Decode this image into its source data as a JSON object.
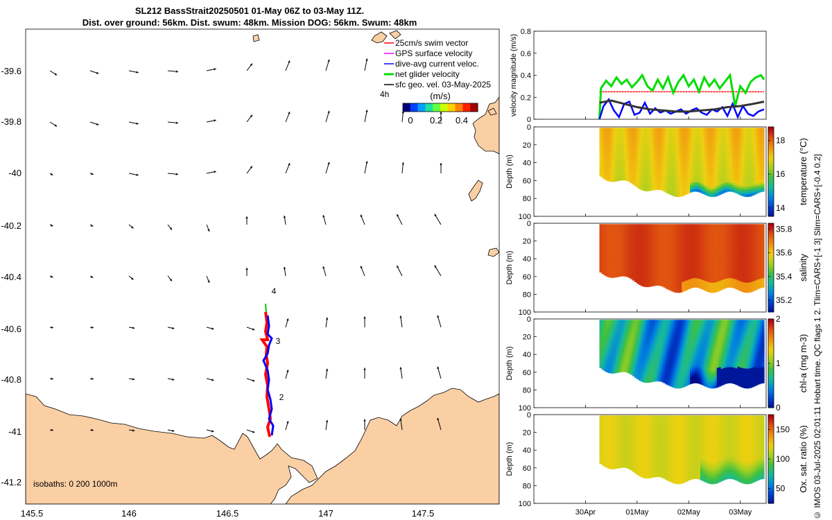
{
  "title": {
    "line1": "SL212 BassStrait20250501 01-May 06Z to 03-May 11Z.",
    "line2": "Dist. over ground: 56km. Dist. swum: 48km. Mission DOG: 56km. Swum: 48km"
  },
  "side_caption": "© IMOS 03-Jul-2025 02:01:11 Hobart time. QC flags 1  2. Tlim=CARS+[-1 3] Slim=CARS+[-0.4 0.2]",
  "colors": {
    "land": "#fbcfa4",
    "swim": "#ff0000",
    "gps": "#ff00ff",
    "dac": "#0000ff",
    "net": "#00dd00",
    "geo": "#000000",
    "track_red": "#ff0000",
    "track_blue": "#0000ff",
    "track_green": "#00cc00"
  },
  "map": {
    "xticks": [
      "145.5",
      "146",
      "146.5",
      "147",
      "147.5"
    ],
    "yticks": [
      "-39.6",
      "-39.8",
      "-40",
      "-40.2",
      "-40.4",
      "-40.6",
      "-40.8",
      "-41",
      "-41.2"
    ],
    "legend": [
      "25cm/s swim vector",
      "GPS surface velocity",
      "dive-avg current veloc.",
      "net glider velocity",
      "sfc geo. vel. 03-May-2025"
    ],
    "legend_4h": "4h",
    "colorbar_label": "(m/s)",
    "colorbar_ticks": [
      "0",
      "0.2",
      "0.4"
    ],
    "isobaths_label": "isobaths: 0   200  1000m",
    "day_markers": [
      "4",
      "3",
      "2"
    ]
  },
  "chart_data": [
    {
      "type": "line",
      "title": "",
      "ylabel": "velocity magnitude (m/s)",
      "ylim": [
        0,
        0.8
      ],
      "yticks": [
        "0",
        "0.2",
        "0.4",
        "0.6",
        "0.8"
      ],
      "x_ticks": [
        "30Apr",
        "01May",
        "02May",
        "03May"
      ],
      "x_domain_days": [
        29.0,
        33.5
      ],
      "series": [
        {
          "name": "25cm/s swim vector",
          "color": "#ff0000",
          "x": [
            30.27,
            30.5,
            30.75,
            31.0,
            31.25,
            31.5,
            31.75,
            32.0,
            32.25,
            32.5,
            32.75,
            33.0,
            33.25,
            33.46
          ],
          "values": [
            0.25,
            0.25,
            0.25,
            0.25,
            0.25,
            0.25,
            0.25,
            0.25,
            0.25,
            0.25,
            0.25,
            0.25,
            0.25,
            0.25
          ]
        },
        {
          "name": "net glider velocity",
          "color": "#00dd00",
          "x": [
            30.27,
            30.3,
            30.4,
            30.5,
            30.6,
            30.7,
            30.8,
            30.9,
            31.0,
            31.1,
            31.2,
            31.3,
            31.4,
            31.5,
            31.6,
            31.7,
            31.8,
            31.9,
            32.0,
            32.1,
            32.2,
            32.3,
            32.4,
            32.5,
            32.6,
            32.7,
            32.8,
            32.9,
            33.0,
            33.1,
            33.2,
            33.3,
            33.4,
            33.46
          ],
          "values": [
            0.0,
            0.28,
            0.35,
            0.3,
            0.38,
            0.32,
            0.36,
            0.29,
            0.34,
            0.4,
            0.3,
            0.26,
            0.36,
            0.28,
            0.38,
            0.24,
            0.34,
            0.4,
            0.3,
            0.36,
            0.25,
            0.38,
            0.3,
            0.36,
            0.28,
            0.34,
            0.4,
            0.12,
            0.3,
            0.24,
            0.34,
            0.38,
            0.4,
            0.36
          ]
        },
        {
          "name": "dive-avg current veloc.",
          "color": "#0000ff",
          "x": [
            30.27,
            30.35,
            30.45,
            30.55,
            30.65,
            30.75,
            30.85,
            30.95,
            31.05,
            31.15,
            31.25,
            31.35,
            31.45,
            31.55,
            31.65,
            31.75,
            31.85,
            31.95,
            32.05,
            32.15,
            32.25,
            32.35,
            32.45,
            32.55,
            32.65,
            32.75,
            32.85,
            32.95,
            33.05,
            33.15,
            33.25,
            33.35,
            33.46
          ],
          "values": [
            0.0,
            0.12,
            0.18,
            0.08,
            0.02,
            0.14,
            0.16,
            0.04,
            0.06,
            0.15,
            0.05,
            0.1,
            0.06,
            0.08,
            0.05,
            0.07,
            0.09,
            0.05,
            0.08,
            0.1,
            0.06,
            0.04,
            0.09,
            0.07,
            0.11,
            0.03,
            0.14,
            0.02,
            0.12,
            0.05,
            0.03,
            0.07,
            0.09
          ]
        },
        {
          "name": "sfc geo. vel. 03-May-2025",
          "color": "#333333",
          "x": [
            30.27,
            30.5,
            30.75,
            31.0,
            31.25,
            31.5,
            31.75,
            32.0,
            32.25,
            32.5,
            32.75,
            33.0,
            33.25,
            33.46
          ],
          "values": [
            0.15,
            0.17,
            0.14,
            0.11,
            0.09,
            0.08,
            0.07,
            0.07,
            0.08,
            0.09,
            0.11,
            0.12,
            0.14,
            0.16
          ]
        }
      ]
    },
    {
      "type": "heatmap",
      "ylabel": "Depth (m)",
      "colorbar_label": "temperature (°C)",
      "colorbar_ticks": [
        "14",
        "16",
        "18"
      ],
      "clim": [
        13.5,
        18.8
      ],
      "ylim": [
        0,
        100
      ],
      "yticks": [
        "0",
        "20",
        "40",
        "60",
        "80",
        "100"
      ],
      "dominant_value": 17.3,
      "colormap": [
        "#000c8a",
        "#003fd0",
        "#0084e0",
        "#16b8a0",
        "#40c040",
        "#a8d020",
        "#f0d010",
        "#f09010",
        "#e05010",
        "#b00010"
      ]
    },
    {
      "type": "heatmap",
      "ylabel": "Depth (m)",
      "colorbar_label": "salinity",
      "colorbar_ticks": [
        "35.2",
        "35.4",
        "35.6",
        "35.8"
      ],
      "clim": [
        35.1,
        35.85
      ],
      "ylim": [
        0,
        100
      ],
      "yticks": [
        "0",
        "20",
        "40",
        "60",
        "80",
        "100"
      ],
      "dominant_value": 35.78,
      "colormap": [
        "#000c8a",
        "#003fd0",
        "#0084e0",
        "#16b8a0",
        "#40c040",
        "#a8d020",
        "#f0d010",
        "#f09010",
        "#e05010",
        "#b00010"
      ]
    },
    {
      "type": "heatmap",
      "ylabel": "Depth (m)",
      "colorbar_label": "chl-a (mg m-3)",
      "colorbar_ticks": [
        "0",
        "1",
        "2"
      ],
      "clim": [
        0,
        2
      ],
      "ylim": [
        0,
        100
      ],
      "yticks": [
        "0",
        "20",
        "40",
        "60",
        "80",
        "100"
      ],
      "dominant_value": 0.7,
      "colormap": [
        "#000c8a",
        "#003fd0",
        "#0084e0",
        "#16b8a0",
        "#40c040",
        "#a8d020",
        "#f0d010",
        "#f09010",
        "#e05010",
        "#b00010"
      ]
    },
    {
      "type": "heatmap",
      "ylabel": "Depth (m)",
      "colorbar_label": "Ox. sat. ratio (%)",
      "colorbar_ticks": [
        "50",
        "100",
        "150"
      ],
      "clim": [
        25,
        175
      ],
      "ylim": [
        0,
        100
      ],
      "yticks": [
        "0",
        "20",
        "40",
        "60",
        "80",
        "100"
      ],
      "dominant_value": 118,
      "colormap": [
        "#000c8a",
        "#003fd0",
        "#0084e0",
        "#16b8a0",
        "#40c040",
        "#a8d020",
        "#f0d010",
        "#f09010",
        "#e05010",
        "#b00010"
      ]
    }
  ]
}
